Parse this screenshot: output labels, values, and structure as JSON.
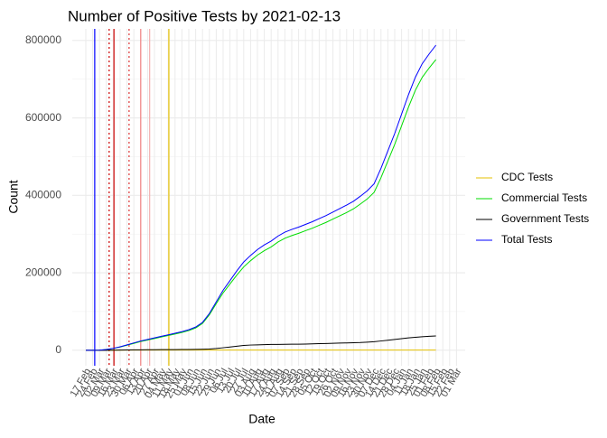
{
  "chart_data": {
    "type": "line",
    "title": "Number of Positive Tests by  2021-02-13",
    "x_label": "Date",
    "y_label": "Count",
    "categories": [
      "17 Feb",
      "24 Feb",
      "02 Mar",
      "09 Mar",
      "16 Mar",
      "23 Mar",
      "30 Mar",
      "06 Apr",
      "13 Apr",
      "20 Apr",
      "27 Apr",
      "04 May",
      "11 May",
      "18 May",
      "25 May",
      "01 Jun",
      "08 Jun",
      "15 Jun",
      "22 Jun",
      "29 Jun",
      "06 Jul",
      "13 Jul",
      "20 Jul",
      "27 Jul",
      "03 Aug",
      "10 Aug",
      "17 Aug",
      "24 Aug",
      "31 Aug",
      "07 Sep",
      "14 Sep",
      "21 Sep",
      "28 Sep",
      "05 Oct",
      "12 Oct",
      "19 Oct",
      "26 Oct",
      "02 Nov",
      "09 Nov",
      "16 Nov",
      "23 Nov",
      "30 Nov",
      "07 Dec",
      "14 Dec",
      "21 Dec",
      "28 Dec",
      "04 Jan",
      "11 Jan",
      "18 Jan",
      "25 Jan",
      "01 Feb",
      "08 Feb",
      "15 Feb",
      "22 Feb",
      "01 Mar"
    ],
    "series": [
      {
        "name": "CDC Tests",
        "color": "#e6c200",
        "values": [
          0,
          0,
          0,
          100,
          200,
          300,
          400,
          500,
          500,
          500,
          500,
          500,
          500,
          500,
          500,
          500,
          500,
          500,
          500,
          500,
          500,
          500,
          500,
          500,
          500,
          500,
          500,
          500,
          500,
          500,
          500,
          500,
          500,
          500,
          500,
          500,
          500,
          500,
          500,
          500,
          500,
          500,
          500,
          500,
          500,
          500,
          500,
          500,
          500,
          500,
          500,
          500,
          null,
          null,
          null
        ]
      },
      {
        "name": "Commercial Tests",
        "color": "#00dd00",
        "values": [
          0,
          0,
          200,
          1900,
          4700,
          8400,
          13000,
          17800,
          22600,
          26400,
          30300,
          34200,
          38100,
          42000,
          45900,
          50800,
          57600,
          69200,
          91600,
          120300,
          148300,
          171300,
          194300,
          215300,
          231300,
          245800,
          257300,
          266800,
          279600,
          289400,
          296200,
          302000,
          308800,
          315300,
          322800,
          330300,
          338800,
          347300,
          355800,
          365300,
          377800,
          390800,
          407800,
          445800,
          488800,
          531800,
          579800,
          627800,
          671300,
          704800,
          728800,
          750800,
          null,
          null,
          null
        ]
      },
      {
        "name": "Government Tests",
        "color": "#000000",
        "values": [
          0,
          0,
          0,
          0,
          200,
          500,
          800,
          1000,
          1200,
          1400,
          1500,
          1600,
          1700,
          1800,
          1900,
          2000,
          2200,
          2600,
          3200,
          4500,
          6500,
          8500,
          10500,
          12500,
          13500,
          14000,
          14500,
          15000,
          15200,
          15400,
          15600,
          15800,
          16000,
          16500,
          17000,
          17500,
          18000,
          18500,
          19000,
          19500,
          20000,
          21000,
          22000,
          24000,
          26000,
          28000,
          30000,
          32000,
          33500,
          35000,
          36000,
          37000,
          null,
          null,
          null
        ]
      },
      {
        "name": "Total Tests",
        "color": "#0000ff",
        "values": [
          0,
          0,
          200,
          2000,
          5000,
          9000,
          14000,
          19000,
          24000,
          28000,
          32000,
          36000,
          40000,
          44000,
          48000,
          53000,
          60000,
          72000,
          95000,
          125000,
          155000,
          180000,
          205000,
          228000,
          245000,
          260000,
          272000,
          282000,
          295000,
          305000,
          312000,
          318000,
          325000,
          332000,
          340000,
          348000,
          357000,
          366000,
          375000,
          385000,
          398000,
          412000,
          430000,
          470000,
          515000,
          560000,
          610000,
          660000,
          705000,
          740000,
          765000,
          788000,
          null,
          null,
          null
        ]
      }
    ],
    "vlines": [
      {
        "x": 1.3,
        "color": "#0000ff",
        "dash": false
      },
      {
        "x": 3.4,
        "color": "#cc0000",
        "dash": true
      },
      {
        "x": 4.1,
        "color": "#cc0000",
        "dash": false
      },
      {
        "x": 6.3,
        "color": "#dd3333",
        "dash": true
      },
      {
        "x": 8.0,
        "color": "#f08080",
        "dash": false
      },
      {
        "x": 9.3,
        "color": "#f4b0b0",
        "dash": false
      },
      {
        "x": 12.1,
        "color": "#e6c200",
        "dash": false
      }
    ],
    "ylim": [
      -40000,
      830000
    ],
    "yticks": [
      0,
      200000,
      400000,
      600000,
      800000
    ],
    "grid": true
  }
}
